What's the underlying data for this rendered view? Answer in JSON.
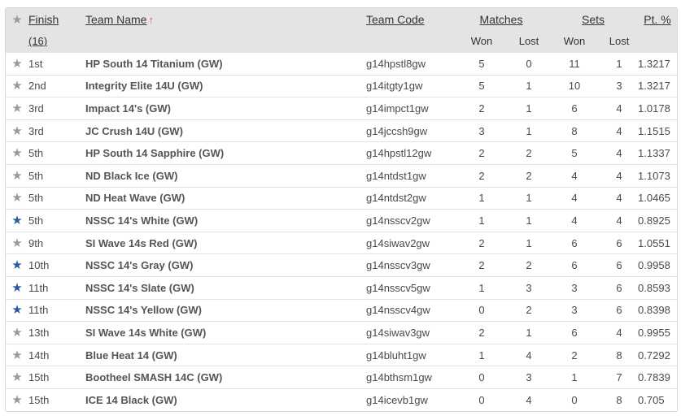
{
  "header": {
    "finish_label": "Finish",
    "finish_count": "(16)",
    "team_name_label": "Team Name",
    "sort_indicator": "↑",
    "team_code_label": "Team Code",
    "matches_label": "Matches",
    "sets_label": "Sets",
    "pt_pct_label": "Pt. %",
    "won_label": "Won",
    "lost_label": "Lost"
  },
  "colors": {
    "star_favorite": "#2a5b9e",
    "star_default": "#9a9a9a",
    "sort_arrow": "#e0533f",
    "header_bg": "#e4e4e4"
  },
  "rows": [
    {
      "favorite": false,
      "finish": "1st",
      "team": "HP South 14 Titanium (GW)",
      "code": "g14hpstl8gw",
      "mw": "5",
      "ml": "0",
      "sw": "11",
      "sl": "1",
      "pct": "1.3217"
    },
    {
      "favorite": false,
      "finish": "2nd",
      "team": "Integrity Elite 14U (GW)",
      "code": "g14itgty1gw",
      "mw": "5",
      "ml": "1",
      "sw": "10",
      "sl": "3",
      "pct": "1.3217"
    },
    {
      "favorite": false,
      "finish": "3rd",
      "team": "Impact 14's (GW)",
      "code": "g14impct1gw",
      "mw": "2",
      "ml": "1",
      "sw": "6",
      "sl": "4",
      "pct": "1.0178"
    },
    {
      "favorite": false,
      "finish": "3rd",
      "team": "JC Crush 14U (GW)",
      "code": "g14jccsh9gw",
      "mw": "3",
      "ml": "1",
      "sw": "8",
      "sl": "4",
      "pct": "1.1515"
    },
    {
      "favorite": false,
      "finish": "5th",
      "team": "HP South 14 Sapphire (GW)",
      "code": "g14hpstl12gw",
      "mw": "2",
      "ml": "2",
      "sw": "5",
      "sl": "4",
      "pct": "1.1337"
    },
    {
      "favorite": false,
      "finish": "5th",
      "team": "ND Black Ice (GW)",
      "code": "g14ntdst1gw",
      "mw": "2",
      "ml": "2",
      "sw": "4",
      "sl": "4",
      "pct": "1.1073"
    },
    {
      "favorite": false,
      "finish": "5th",
      "team": "ND Heat Wave (GW)",
      "code": "g14ntdst2gw",
      "mw": "1",
      "ml": "1",
      "sw": "4",
      "sl": "4",
      "pct": "1.0465"
    },
    {
      "favorite": true,
      "finish": "5th",
      "team": "NSSC 14's White (GW)",
      "code": "g14nsscv2gw",
      "mw": "1",
      "ml": "1",
      "sw": "4",
      "sl": "4",
      "pct": "0.8925"
    },
    {
      "favorite": false,
      "finish": "9th",
      "team": "SI Wave 14s Red (GW)",
      "code": "g14siwav2gw",
      "mw": "2",
      "ml": "1",
      "sw": "6",
      "sl": "6",
      "pct": "1.0551"
    },
    {
      "favorite": true,
      "finish": "10th",
      "team": "NSSC 14's Gray (GW)",
      "code": "g14nsscv3gw",
      "mw": "2",
      "ml": "2",
      "sw": "6",
      "sl": "6",
      "pct": "0.9958"
    },
    {
      "favorite": true,
      "finish": "11th",
      "team": "NSSC 14's Slate (GW)",
      "code": "g14nsscv5gw",
      "mw": "1",
      "ml": "3",
      "sw": "3",
      "sl": "6",
      "pct": "0.8593"
    },
    {
      "favorite": true,
      "finish": "11th",
      "team": "NSSC 14's Yellow (GW)",
      "code": "g14nsscv4gw",
      "mw": "0",
      "ml": "2",
      "sw": "3",
      "sl": "6",
      "pct": "0.8398"
    },
    {
      "favorite": false,
      "finish": "13th",
      "team": "SI Wave 14s White (GW)",
      "code": "g14siwav3gw",
      "mw": "2",
      "ml": "1",
      "sw": "6",
      "sl": "4",
      "pct": "0.9955"
    },
    {
      "favorite": false,
      "finish": "14th",
      "team": "Blue Heat 14 (GW)",
      "code": "g14bluht1gw",
      "mw": "1",
      "ml": "4",
      "sw": "2",
      "sl": "8",
      "pct": "0.7292"
    },
    {
      "favorite": false,
      "finish": "15th",
      "team": "Bootheel SMASH 14C (GW)",
      "code": "g14bthsm1gw",
      "mw": "0",
      "ml": "3",
      "sw": "1",
      "sl": "7",
      "pct": "0.7839"
    },
    {
      "favorite": false,
      "finish": "15th",
      "team": "ICE 14 Black (GW)",
      "code": "g14icevb1gw",
      "mw": "0",
      "ml": "4",
      "sw": "0",
      "sl": "8",
      "pct": "0.705"
    }
  ]
}
